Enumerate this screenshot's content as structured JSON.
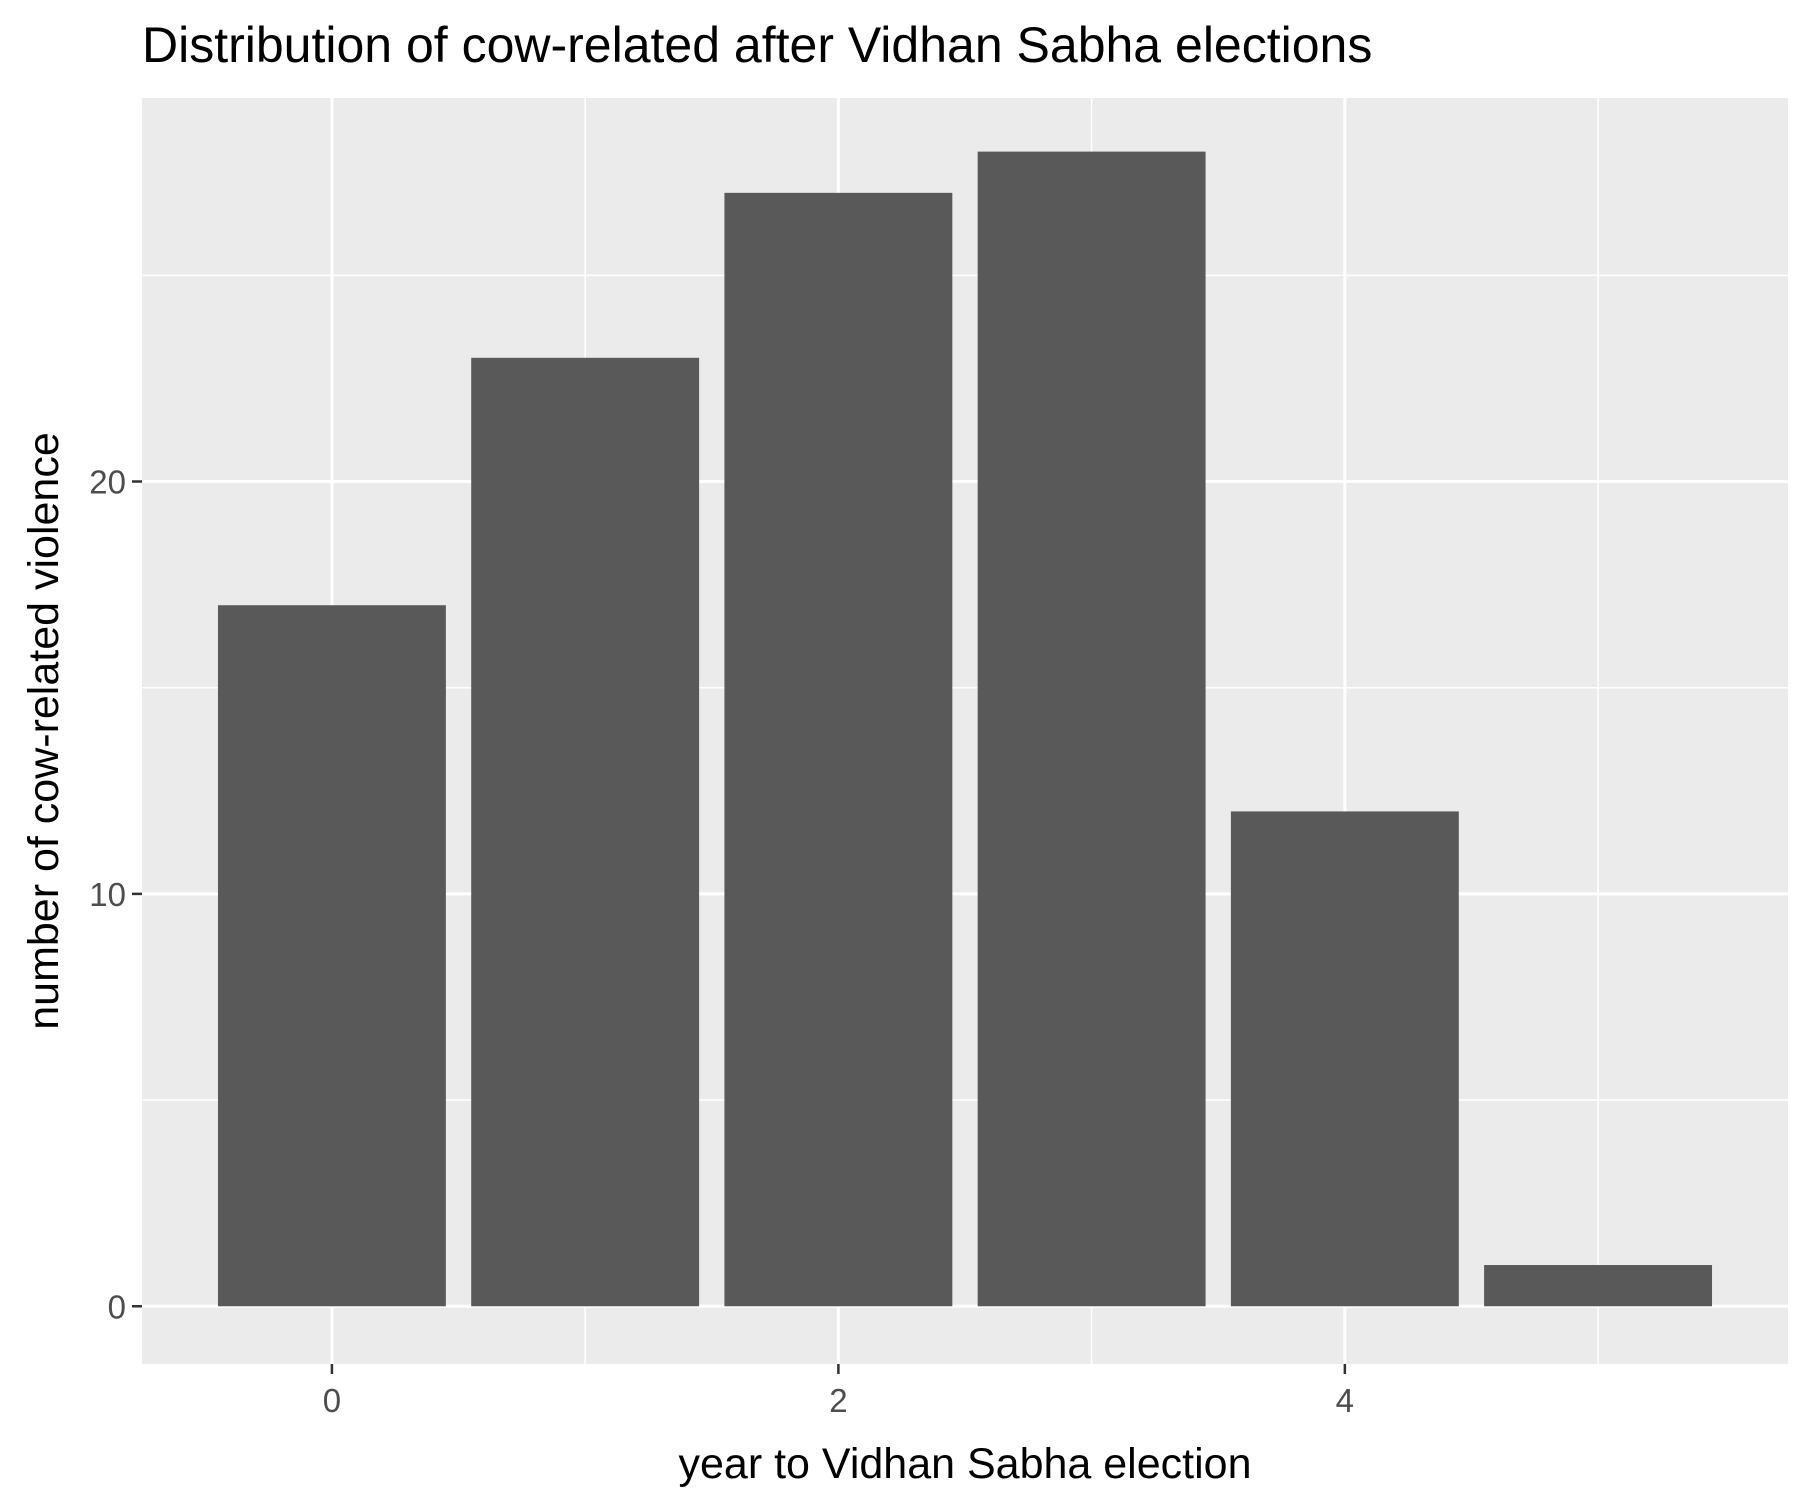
{
  "chart_data": {
    "type": "bar",
    "title": "Distribution of cow-related after Vidhan Sabha elections",
    "xlabel": "year to Vidhan Sabha election",
    "ylabel": "number of cow-related violence",
    "x": [
      0,
      1,
      2,
      3,
      4,
      5
    ],
    "values": [
      17,
      23,
      27,
      28,
      12,
      1
    ],
    "xlim": [
      -0.75,
      5.75
    ],
    "ylim": [
      -1.4,
      29.3
    ],
    "x_ticks": [
      0,
      2,
      4
    ],
    "y_ticks": [
      0,
      10,
      20
    ],
    "x_minor_gridlines": [
      1,
      3,
      5
    ],
    "y_minor_gridlines": [
      5,
      15,
      25
    ],
    "bar_width": 0.9,
    "grid": true,
    "legend": "none",
    "colors": {
      "bar_fill": "#595959",
      "panel_background": "#ebebeb",
      "gridline": "#ffffff",
      "tick_label": "#4d4d4d",
      "tick_mark": "#333333"
    }
  }
}
